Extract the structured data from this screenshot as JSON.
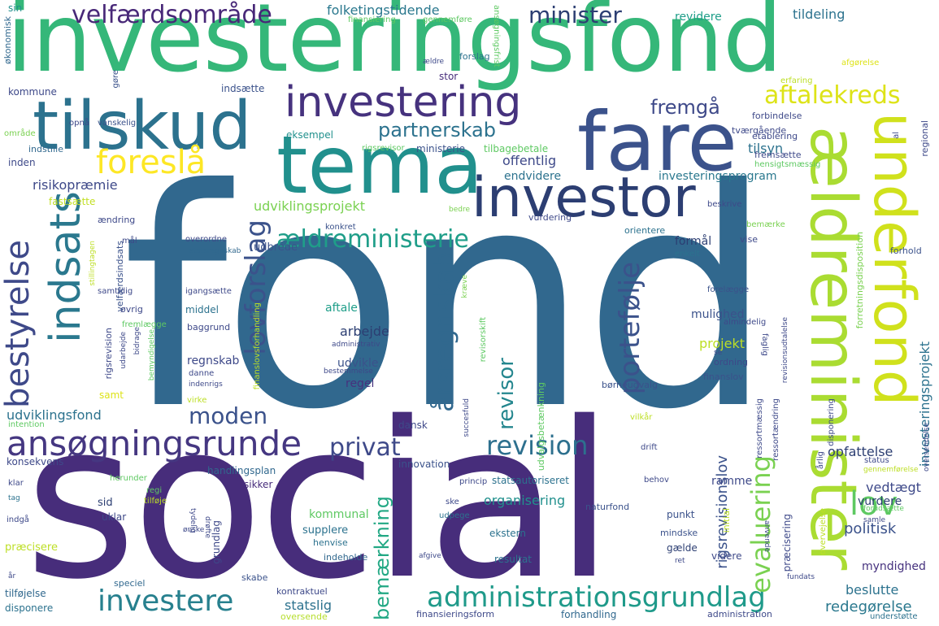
{
  "words": [
    {
      "text": "investeringsfond",
      "color": "#35b779"
    },
    {
      "text": "fond",
      "color": "#31688e"
    },
    {
      "text": "social",
      "color": "#472d7b"
    },
    {
      "text": "tema",
      "color": "#21908d"
    },
    {
      "text": "fare",
      "color": "#3b528b"
    },
    {
      "text": "tilskud",
      "color": "#2c728e"
    },
    {
      "text": "investor",
      "color": "#2c3e72"
    },
    {
      "text": "investering",
      "color": "#46327e"
    },
    {
      "text": "ældreminister",
      "color": "#aadc32"
    },
    {
      "text": "underfond",
      "color": "#d0e11c"
    },
    {
      "text": "indsats",
      "color": "#2a788e"
    },
    {
      "text": "bestyrelse",
      "color": "#3e4989"
    },
    {
      "text": "lovforslag",
      "color": "#3b528b"
    },
    {
      "text": "ansøgningsrunde",
      "color": "#453781"
    },
    {
      "text": "foreslå",
      "color": "#fde725"
    },
    {
      "text": "aftalekreds",
      "color": "#dde318"
    },
    {
      "text": "velfærdsområde",
      "color": "#482878"
    },
    {
      "text": "ældreministerie",
      "color": "#1f9e89"
    },
    {
      "text": "portefølje",
      "color": "#3b528b"
    },
    {
      "text": "årsregnskab",
      "color": "#31688e"
    },
    {
      "text": "administrationsgrundlag",
      "color": "#1f9a8a"
    },
    {
      "text": "investere",
      "color": "#27808e"
    },
    {
      "text": "revision",
      "color": "#2d708e"
    },
    {
      "text": "privat",
      "color": "#3e4989"
    },
    {
      "text": "lov",
      "color": "#5ec962"
    },
    {
      "text": "evaluering",
      "color": "#7ad151"
    },
    {
      "text": "moden",
      "color": "#3b528b"
    },
    {
      "text": "partnerskab",
      "color": "#2c728e"
    },
    {
      "text": "fremgå",
      "color": "#3e4989"
    },
    {
      "text": "minister",
      "color": "#2c3e72"
    },
    {
      "text": "bemærkning",
      "color": "#22a884"
    },
    {
      "text": "revisor",
      "color": "#24868e"
    },
    {
      "text": "folketingstidende",
      "color": "#2a788e"
    },
    {
      "text": "udviklingsprojekt",
      "color": "#7ad151"
    },
    {
      "text": "udviklingsfond",
      "color": "#2c728e"
    },
    {
      "text": "risikopræmie",
      "color": "#3e4989"
    },
    {
      "text": "investeringsprogram",
      "color": "#2a788e"
    },
    {
      "text": "tildeling",
      "color": "#2c728e"
    },
    {
      "text": "revidere",
      "color": "#1f9e89"
    },
    {
      "text": "sin",
      "color": "#21908d"
    },
    {
      "text": "økonomisk",
      "color": "#31688e"
    },
    {
      "text": "investeringsprojekt",
      "color": "#2c728e"
    },
    {
      "text": "rigsrevisionslov",
      "color": "#3b528b"
    },
    {
      "text": "redegørelse",
      "color": "#2a788e"
    },
    {
      "text": "statslig",
      "color": "#2c728e"
    },
    {
      "text": "kommunal",
      "color": "#5ec962"
    },
    {
      "text": "organisering",
      "color": "#21908d"
    },
    {
      "text": "beslutte",
      "color": "#2c728e"
    },
    {
      "text": "myndighed",
      "color": "#46327e"
    },
    {
      "text": "politisk",
      "color": "#3b528b"
    },
    {
      "text": "vurdere",
      "color": "#2c3e72"
    },
    {
      "text": "vedtægt",
      "color": "#3e4989"
    },
    {
      "text": "opfattelse",
      "color": "#2c3e72"
    },
    {
      "text": "ramme",
      "color": "#3e4989"
    },
    {
      "text": "mulighed",
      "color": "#3b528b"
    },
    {
      "text": "projekt",
      "color": "#bddf26"
    },
    {
      "text": "formål",
      "color": "#2c3e72"
    },
    {
      "text": "arbejde",
      "color": "#2c3e72"
    },
    {
      "text": "aftale",
      "color": "#1f9e89"
    },
    {
      "text": "udvikle",
      "color": "#3b528b"
    },
    {
      "text": "regel",
      "color": "#46327e"
    },
    {
      "text": "regnskab",
      "color": "#3e4989"
    },
    {
      "text": "offentlig",
      "color": "#3e4989"
    },
    {
      "text": "endvidere",
      "color": "#2c728e"
    },
    {
      "text": "tilsyn",
      "color": "#2c728e"
    },
    {
      "text": "ministerie",
      "color": "#3b528b"
    },
    {
      "text": "eksempel",
      "color": "#21908d"
    },
    {
      "text": "indsætte",
      "color": "#3b528b"
    },
    {
      "text": "kommune",
      "color": "#3e4989"
    },
    {
      "text": "stor",
      "color": "#472d7b"
    },
    {
      "text": "forslag",
      "color": "#2c728e"
    },
    {
      "text": "inden",
      "color": "#3e4989"
    },
    {
      "text": "indstille",
      "color": "#31688e"
    },
    {
      "text": "fastsætte",
      "color": "#c2df23"
    },
    {
      "text": "udbrede",
      "color": "#3b528b"
    },
    {
      "text": "middel",
      "color": "#2c728e"
    },
    {
      "text": "samt",
      "color": "#dde318"
    },
    {
      "text": "konsekvens",
      "color": "#3e4989"
    },
    {
      "text": "handlingsplan",
      "color": "#31688e"
    },
    {
      "text": "statsautoriseret",
      "color": "#2c728e"
    },
    {
      "text": "innovation",
      "color": "#3b528b"
    },
    {
      "text": "sikker",
      "color": "#472d7b"
    },
    {
      "text": "supplere",
      "color": "#2c728e"
    },
    {
      "text": "sid",
      "color": "#2c3e72"
    },
    {
      "text": "uklar",
      "color": "#3e4989"
    },
    {
      "text": "præcisere",
      "color": "#bddf26"
    },
    {
      "text": "tilføjelse",
      "color": "#31688e"
    },
    {
      "text": "disponere",
      "color": "#2c728e"
    },
    {
      "text": "speciel",
      "color": "#31688e"
    },
    {
      "text": "kontraktuel",
      "color": "#3e4989"
    },
    {
      "text": "dansk",
      "color": "#3e4989"
    },
    {
      "text": "ekstern",
      "color": "#2c728e"
    },
    {
      "text": "naturfond",
      "color": "#3b528b"
    },
    {
      "text": "resultat",
      "color": "#2c728e"
    },
    {
      "text": "gælde",
      "color": "#2c3e72"
    },
    {
      "text": "henvise",
      "color": "#2c728e"
    },
    {
      "text": "indeholde",
      "color": "#31688e"
    },
    {
      "text": "punkt",
      "color": "#3b528b"
    },
    {
      "text": "videre",
      "color": "#3e4989"
    },
    {
      "text": "mindske",
      "color": "#3b528b"
    },
    {
      "text": "grundlag",
      "color": "#3e4989"
    },
    {
      "text": "skabe",
      "color": "#3b528b"
    },
    {
      "text": "finansieringsform",
      "color": "#3e4989"
    },
    {
      "text": "forhandling",
      "color": "#31688e"
    },
    {
      "text": "administration",
      "color": "#3e4989"
    },
    {
      "text": "oversende",
      "color": "#b5de2b"
    },
    {
      "text": "understøtte",
      "color": "#2c728e"
    },
    {
      "text": "finansiering",
      "color": "#5ec962"
    },
    {
      "text": "gennemføre",
      "color": "#5ec962"
    },
    {
      "text": "ansøgningsfrist",
      "color": "#5ec962"
    },
    {
      "text": "vanskelig",
      "color": "#3b528b"
    },
    {
      "text": "opnå",
      "color": "#3e4989"
    },
    {
      "text": "gøre",
      "color": "#3b528b"
    },
    {
      "text": "område",
      "color": "#7ad151"
    },
    {
      "text": "rigsrevisor",
      "color": "#5ec962"
    },
    {
      "text": "tilbagebetale",
      "color": "#5ec962"
    },
    {
      "text": "tværgående",
      "color": "#3e4989"
    },
    {
      "text": "forbindelse",
      "color": "#3e4989"
    },
    {
      "text": "afgørelse",
      "color": "#dde318"
    },
    {
      "text": "erfaring",
      "color": "#bddf26"
    },
    {
      "text": "regional",
      "color": "#3e4989"
    },
    {
      "text": "etablering",
      "color": "#3e4989"
    },
    {
      "text": "fremsætte",
      "color": "#3e4989"
    },
    {
      "text": "hensigtsmæssig",
      "color": "#5ec962"
    },
    {
      "text": "al",
      "color": "#3e4989"
    },
    {
      "text": "beskrive",
      "color": "#3e4989"
    },
    {
      "text": "bedre",
      "color": "#7ad151"
    },
    {
      "text": "ændring",
      "color": "#3e4989"
    },
    {
      "text": "konkret",
      "color": "#3b528b"
    },
    {
      "text": "vurdering",
      "color": "#3e4989"
    },
    {
      "text": "orientere",
      "color": "#2c728e"
    },
    {
      "text": "bemærke",
      "color": "#7ad151"
    },
    {
      "text": "vise",
      "color": "#3e4989"
    },
    {
      "text": "forhold",
      "color": "#3b528b"
    },
    {
      "text": "mål",
      "color": "#3e4989"
    },
    {
      "text": "overordne",
      "color": "#3e4989"
    },
    {
      "text": "statsregnskab",
      "color": "#31688e"
    },
    {
      "text": "enkelt",
      "color": "#2c728e"
    },
    {
      "text": "samtidig",
      "color": "#3e4989"
    },
    {
      "text": "igangsætte",
      "color": "#3e4989"
    },
    {
      "text": "øvrig",
      "color": "#3e4989"
    },
    {
      "text": "baggrund",
      "color": "#3e4989"
    },
    {
      "text": "fremlægge",
      "color": "#5ec962"
    },
    {
      "text": "administrativ",
      "color": "#3e4989"
    },
    {
      "text": "bestemmelse",
      "color": "#3e4989"
    },
    {
      "text": "børneudvalg",
      "color": "#3b528b"
    },
    {
      "text": "ordning",
      "color": "#3e4989"
    },
    {
      "text": "finanslov",
      "color": "#3b528b"
    },
    {
      "text": "almindelig",
      "color": "#3e4989"
    },
    {
      "text": "forelægge",
      "color": "#3b528b"
    },
    {
      "text": "faglig",
      "color": "#3e4989"
    },
    {
      "text": "se",
      "color": "#3e4989"
    },
    {
      "text": "danne",
      "color": "#3e4989"
    },
    {
      "text": "virke",
      "color": "#bddf26"
    },
    {
      "text": "indenrigs",
      "color": "#3e4989"
    },
    {
      "text": "intention",
      "color": "#5ec962"
    },
    {
      "text": "vilkår",
      "color": "#bddf26"
    },
    {
      "text": "drift",
      "color": "#3e4989"
    },
    {
      "text": "behov",
      "color": "#3e4989"
    },
    {
      "text": "status",
      "color": "#3e4989"
    },
    {
      "text": "gennemførelse",
      "color": "#bddf26"
    },
    {
      "text": "herunder",
      "color": "#5ec962"
    },
    {
      "text": "regi",
      "color": "#5ec962"
    },
    {
      "text": "tilføje",
      "color": "#bddf26"
    },
    {
      "text": "princip",
      "color": "#3e4989"
    },
    {
      "text": "ske",
      "color": "#3e4989"
    },
    {
      "text": "udpege",
      "color": "#2c728e"
    },
    {
      "text": "klar",
      "color": "#3e4989"
    },
    {
      "text": "tag",
      "color": "#2c728e"
    },
    {
      "text": "indgå",
      "color": "#3e4989"
    },
    {
      "text": "samle",
      "color": "#3e4989"
    },
    {
      "text": "forudsætte",
      "color": "#5ec962"
    },
    {
      "text": "afgive",
      "color": "#3e4989"
    },
    {
      "text": "ret",
      "color": "#3e4989"
    },
    {
      "text": "år",
      "color": "#3e4989"
    },
    {
      "text": "ønske",
      "color": "#3e4989"
    },
    {
      "text": "drøfte",
      "color": "#3e4989"
    },
    {
      "text": "tydelig",
      "color": "#3e4989"
    },
    {
      "text": "rigsrevision",
      "color": "#3e4989"
    },
    {
      "text": "velfærdsindsats",
      "color": "#3b528b"
    },
    {
      "text": "udarbejde",
      "color": "#3e4989"
    },
    {
      "text": "bidrage",
      "color": "#3e4989"
    },
    {
      "text": "bemyndigelse",
      "color": "#5ec962"
    },
    {
      "text": "stillingtagen",
      "color": "#bddf26"
    },
    {
      "text": "forretningsdisposition",
      "color": "#7ad151"
    },
    {
      "text": "revisorskift",
      "color": "#5ec962"
    },
    {
      "text": "kræve",
      "color": "#7ad151"
    },
    {
      "text": "finanslovsforhandling",
      "color": "#bddf26"
    },
    {
      "text": "udvalgsbetænkning",
      "color": "#5ec962"
    },
    {
      "text": "succesfuld",
      "color": "#3e4989"
    },
    {
      "text": "præcisering",
      "color": "#3e4989"
    },
    {
      "text": "disponering",
      "color": "#3e4989"
    },
    {
      "text": "årlig",
      "color": "#3e4989"
    },
    {
      "text": "revisionsudtalelse",
      "color": "#3e4989"
    },
    {
      "text": "ressortændring",
      "color": "#3e4989"
    },
    {
      "text": "ressortmæssig",
      "color": "#3e4989"
    },
    {
      "text": "initial",
      "color": "#bddf26"
    },
    {
      "text": "overvejelse",
      "color": "#bddf26"
    },
    {
      "text": "anvende",
      "color": "#3e4989"
    },
    {
      "text": "oversendelse",
      "color": "#3e4989"
    },
    {
      "text": "fundats",
      "color": "#3e4989"
    },
    {
      "text": "ældre",
      "color": "#3e4989"
    }
  ]
}
